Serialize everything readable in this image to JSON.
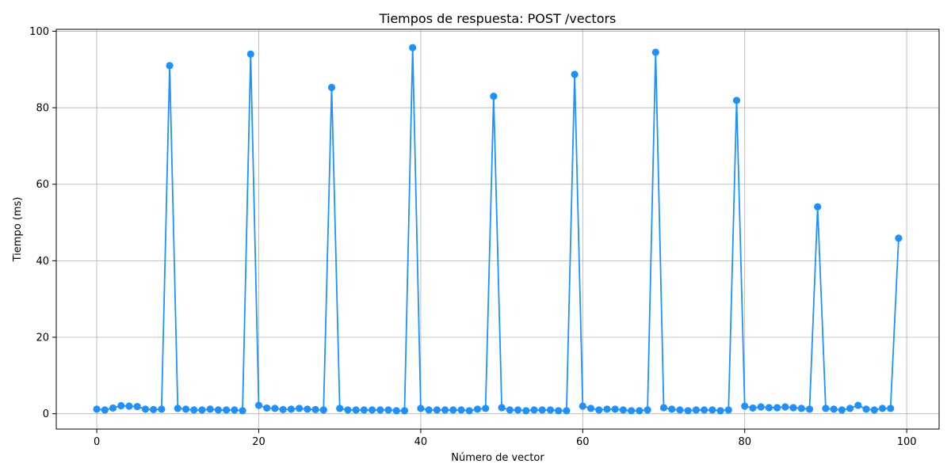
{
  "chart_data": {
    "type": "line",
    "title": "Tiempos de respuesta: POST /vectors",
    "xlabel": "Número de vector",
    "ylabel": "Tiempo (ms)",
    "xlim": [
      -5,
      104
    ],
    "ylim": [
      -4,
      100.5
    ],
    "xticks": [
      0,
      20,
      40,
      60,
      80,
      100
    ],
    "yticks": [
      0,
      20,
      40,
      60,
      80,
      100
    ],
    "grid": true,
    "series": [
      {
        "color": "#1e90ff",
        "marker": "circle",
        "x": [
          0,
          1,
          2,
          3,
          4,
          5,
          6,
          7,
          8,
          9,
          10,
          11,
          12,
          13,
          14,
          15,
          16,
          17,
          18,
          19,
          20,
          21,
          22,
          23,
          24,
          25,
          26,
          27,
          28,
          29,
          30,
          31,
          32,
          33,
          34,
          35,
          36,
          37,
          38,
          39,
          40,
          41,
          42,
          43,
          44,
          45,
          46,
          47,
          48,
          49,
          50,
          51,
          52,
          53,
          54,
          55,
          56,
          57,
          58,
          59,
          60,
          61,
          62,
          63,
          64,
          65,
          66,
          67,
          68,
          69,
          70,
          71,
          72,
          73,
          74,
          75,
          76,
          77,
          78,
          79,
          80,
          81,
          82,
          83,
          84,
          85,
          86,
          87,
          88,
          89,
          90,
          91,
          92,
          93,
          94,
          95,
          96,
          97,
          98,
          99
        ],
        "values": [
          1.2,
          1.0,
          1.5,
          2.1,
          2.0,
          1.9,
          1.2,
          1.1,
          1.2,
          91.0,
          1.4,
          1.2,
          1.0,
          1.0,
          1.2,
          1.0,
          1.0,
          1.0,
          0.8,
          94.0,
          2.2,
          1.5,
          1.4,
          1.1,
          1.2,
          1.4,
          1.2,
          1.1,
          1.0,
          85.3,
          1.4,
          1.0,
          1.0,
          1.0,
          1.0,
          1.0,
          1.0,
          0.8,
          0.8,
          95.7,
          1.4,
          1.0,
          1.0,
          1.0,
          1.0,
          1.0,
          0.8,
          1.2,
          1.4,
          83.0,
          1.6,
          1.0,
          1.0,
          0.8,
          1.0,
          1.0,
          1.0,
          0.8,
          0.8,
          88.7,
          2.0,
          1.4,
          1.0,
          1.2,
          1.2,
          1.0,
          0.8,
          0.8,
          1.0,
          94.5,
          1.6,
          1.2,
          1.0,
          0.8,
          1.0,
          1.0,
          1.0,
          0.8,
          1.0,
          81.9,
          2.0,
          1.5,
          1.8,
          1.6,
          1.6,
          1.8,
          1.6,
          1.4,
          1.2,
          54.1,
          1.4,
          1.2,
          1.0,
          1.4,
          2.2,
          1.2,
          1.0,
          1.4,
          1.4,
          45.9
        ]
      }
    ]
  }
}
